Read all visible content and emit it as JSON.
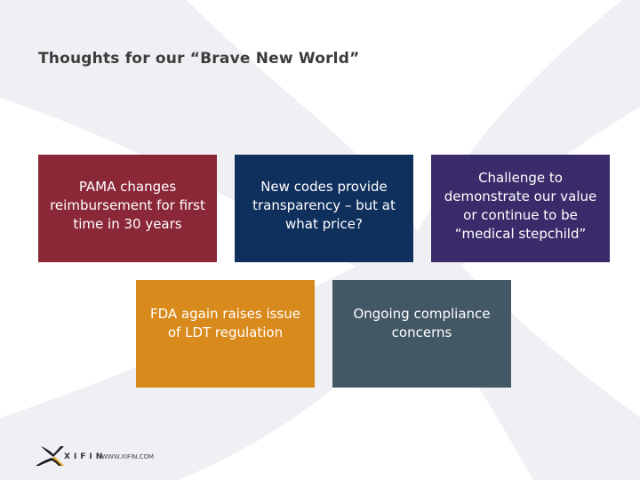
{
  "slide": {
    "title": "Thoughts for our “Brave New World”"
  },
  "boxes": [
    {
      "text": "PAMA changes reimbursement for first time in 30 years",
      "color": "#8b2838"
    },
    {
      "text": "New codes provide transparency – but at what price?",
      "color": "#0f2f5d"
    },
    {
      "text": "Challenge to demonstrate our value or continue to be “medical stepchild”",
      "color": "#3a2c6b"
    },
    {
      "text": "FDA again raises issue of LDT regulation",
      "color": "#d98a1c"
    },
    {
      "text": "Ongoing compliance concerns",
      "color": "#435865"
    }
  ],
  "footer": {
    "logo_word": "XIFIN",
    "url": "WWW.XIFIN.COM"
  }
}
